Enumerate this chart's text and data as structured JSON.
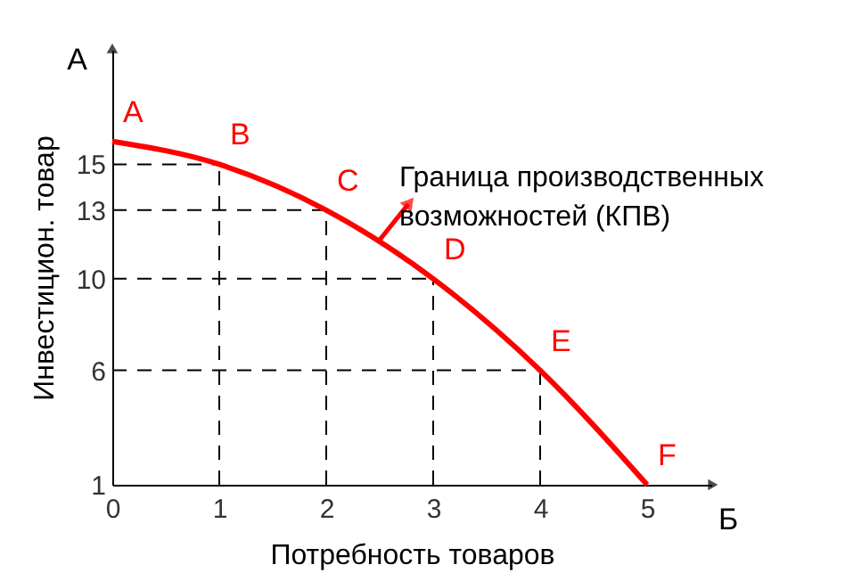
{
  "chart_data": {
    "type": "line",
    "xlabel": "Потребность товаров",
    "ylabel": "Инвестицион. товар",
    "x": [
      0,
      1,
      2,
      3,
      4,
      5
    ],
    "series": [
      {
        "color": "#ff0000",
        "values": [
          16,
          15,
          13,
          10,
          6,
          1
        ]
      }
    ],
    "xlim": [
      0,
      5.6
    ],
    "ylim": [
      1,
      20
    ],
    "xticks": [
      0,
      1,
      2,
      3,
      4,
      5
    ],
    "yticks": [
      1,
      6,
      10,
      13,
      15
    ],
    "marker": "none",
    "line_style": "solid",
    "annotations": [
      "А",
      "Б",
      {
        "text": "A",
        "x": 0,
        "y": 16
      },
      {
        "text": "B",
        "x": 1,
        "y": 15
      },
      {
        "text": "C",
        "x": 2,
        "y": 13
      },
      {
        "text": "D",
        "x": 3,
        "y": 10
      },
      {
        "text": "E",
        "x": 4,
        "y": 6
      },
      {
        "text": "F",
        "x": 5,
        "y": 1
      },
      {
        "text": "Граница производственных возможностей  (КПВ)",
        "x": 2.5,
        "y": 11.7
      }
    ]
  }
}
